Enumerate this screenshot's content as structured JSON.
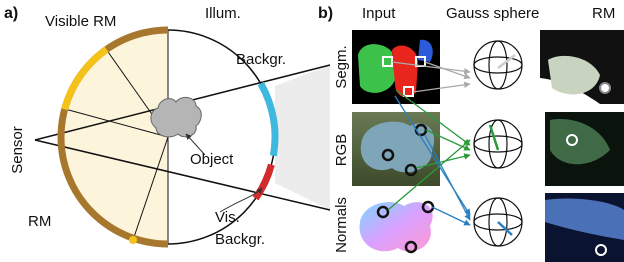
{
  "panel_a": {
    "label": "a)",
    "visible_rm": "Visible RM",
    "illum": "Illum.",
    "backgr": "Backgr.",
    "sensor": "Sensor",
    "object": "Object",
    "rm": "RM",
    "vis_backgr": [
      "Vis.",
      "Backgr."
    ]
  },
  "panel_b": {
    "label": "b)",
    "columns": [
      "Input",
      "Gauss sphere",
      "RM"
    ],
    "rows": [
      "Segm.",
      "RGB",
      "Normals"
    ]
  }
}
